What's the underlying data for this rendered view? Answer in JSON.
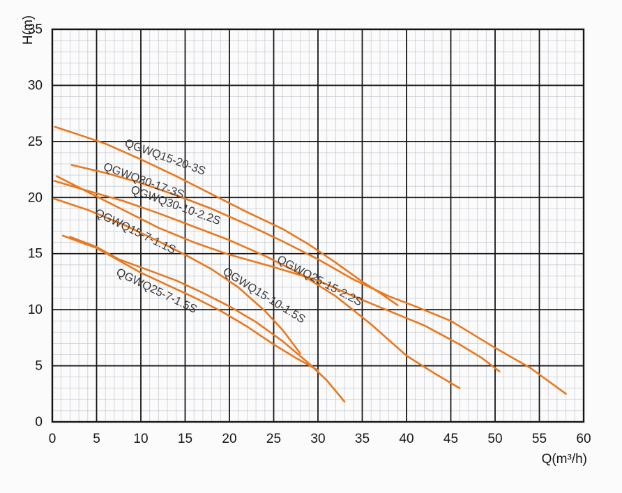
{
  "chart_data": {
    "type": "line",
    "title": "",
    "xlabel": "Q(m³/h)",
    "ylabel": "H(m)",
    "xlim": [
      0,
      60
    ],
    "ylim": [
      0,
      35
    ],
    "x_ticks": [
      0,
      5,
      10,
      15,
      20,
      25,
      30,
      35,
      40,
      45,
      50,
      55,
      60
    ],
    "y_ticks": [
      0,
      5,
      10,
      15,
      20,
      25,
      30,
      35
    ],
    "grid": {
      "major_step": 5,
      "minor_step": 1,
      "minor_on": true
    },
    "style": {
      "curve_color": "#e8791f",
      "major_grid_color": "#161616",
      "minor_grid_color": "#c7ccd4",
      "tick_color": "#161616",
      "label_color": "#3b3b3b"
    },
    "series": [
      {
        "name": "QGWQ15-20-3S",
        "points": [
          [
            0.3,
            26.3
          ],
          [
            3,
            25.6
          ],
          [
            6,
            24.8
          ],
          [
            10,
            23.4
          ],
          [
            14,
            21.9
          ],
          [
            18,
            20.3
          ],
          [
            22,
            18.7
          ],
          [
            26,
            17.2
          ],
          [
            29,
            15.8
          ],
          [
            32,
            14.2
          ],
          [
            35,
            12.5
          ],
          [
            37,
            11.5
          ],
          [
            39,
            10.4
          ]
        ],
        "label": {
          "q": 12.6,
          "h": 23.3,
          "angle": 20
        }
      },
      {
        "name": "QGWQ30-17-3S",
        "points": [
          [
            2.2,
            22.9
          ],
          [
            6,
            22.2
          ],
          [
            10,
            21.3
          ],
          [
            14,
            20.2
          ],
          [
            18,
            19.0
          ],
          [
            22,
            17.6
          ],
          [
            26,
            16.1
          ],
          [
            30,
            14.5
          ],
          [
            34,
            12.7
          ],
          [
            38,
            11.2
          ],
          [
            41,
            10.3
          ],
          [
            45,
            9.0
          ],
          [
            50,
            6.6
          ],
          [
            54,
            4.8
          ],
          [
            58,
            2.5
          ]
        ],
        "label": {
          "q": 10.2,
          "h": 21.2,
          "angle": 20
        }
      },
      {
        "name": "QGWQ30-10-2.2S",
        "points": [
          [
            0.2,
            21.5
          ],
          [
            4,
            20.6
          ],
          [
            8,
            19.7
          ],
          [
            12,
            18.6
          ],
          [
            16,
            17.4
          ],
          [
            20,
            16.2
          ],
          [
            24,
            14.8
          ],
          [
            28,
            13.2
          ],
          [
            32,
            11.2
          ],
          [
            36,
            8.7
          ],
          [
            40,
            5.9
          ],
          [
            43,
            4.4
          ],
          [
            46,
            3.0
          ]
        ],
        "label": {
          "q": 13.8,
          "h": 19.0,
          "angle": 20
        }
      },
      {
        "name": "QGWQ15-7-1.1S",
        "points": [
          [
            0.2,
            19.9
          ],
          [
            4,
            18.9
          ],
          [
            8,
            17.6
          ],
          [
            12,
            16.1
          ],
          [
            15,
            14.9
          ],
          [
            18,
            13.6
          ],
          [
            21,
            12.0
          ],
          [
            24,
            9.9
          ],
          [
            26,
            8.2
          ],
          [
            28,
            6.1
          ]
        ],
        "label": {
          "q": 9.2,
          "h": 16.7,
          "angle": 26
        }
      },
      {
        "name": "QGWQ25-15-2.2S",
        "points": [
          [
            0.5,
            21.9
          ],
          [
            3,
            20.9
          ],
          [
            5,
            20.1
          ],
          [
            8,
            18.9
          ],
          [
            12,
            17.3
          ],
          [
            16,
            16.0
          ],
          [
            20,
            14.9
          ],
          [
            25,
            13.8
          ],
          [
            30,
            12.6
          ],
          [
            34,
            11.2
          ],
          [
            38,
            9.9
          ],
          [
            42,
            8.6
          ],
          [
            46,
            6.9
          ],
          [
            48.5,
            5.7
          ],
          [
            50.5,
            4.5
          ]
        ],
        "label": {
          "q": 30.0,
          "h": 12.3,
          "angle": 28
        }
      },
      {
        "name": "QGWQ15-10-1.5S",
        "points": [
          [
            1.2,
            16.6
          ],
          [
            5,
            15.5
          ],
          [
            7.5,
            14.4
          ],
          [
            10,
            13.3
          ],
          [
            13,
            12.2
          ],
          [
            16,
            11.1
          ],
          [
            19,
            9.9
          ],
          [
            22,
            8.5
          ],
          [
            25,
            6.9
          ],
          [
            27.5,
            5.7
          ],
          [
            30,
            4.6
          ]
        ],
        "label": {
          "q": 23.7,
          "h": 11.0,
          "angle": 32
        }
      },
      {
        "name": "QGWQ25-7-1.5S",
        "points": [
          [
            2,
            16.5
          ],
          [
            5,
            15.6
          ],
          [
            7.5,
            14.5
          ],
          [
            10.6,
            13.6
          ],
          [
            14,
            12.6
          ],
          [
            17,
            11.5
          ],
          [
            20,
            10.3
          ],
          [
            23,
            8.9
          ],
          [
            26,
            7.2
          ],
          [
            29,
            5.2
          ],
          [
            31,
            3.7
          ],
          [
            33,
            1.8
          ]
        ],
        "label": {
          "q": 11.6,
          "h": 11.4,
          "angle": 26
        }
      }
    ]
  }
}
